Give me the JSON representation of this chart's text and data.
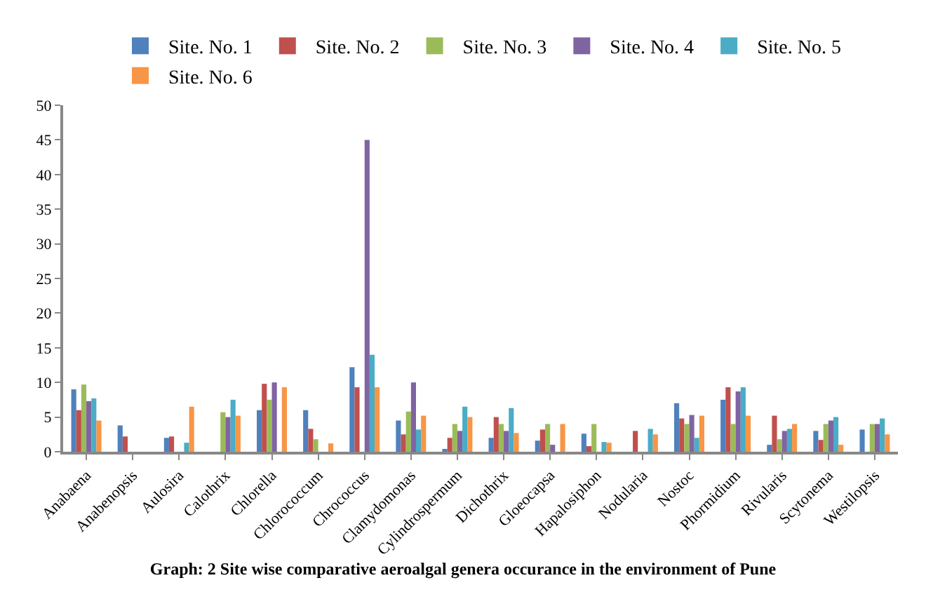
{
  "chart_data": {
    "type": "bar",
    "title": "Graph: 2 Site wise comparative aeroalgal genera occurance in the environment of Pune",
    "categories": [
      "Anabaena",
      "Anabenopsis",
      "Aulosira",
      "Calothrix",
      "Chlorella",
      "Chlorococcum",
      "Chrococcus",
      "Clamydomonas",
      "Cylindrospermum",
      "Dichothrix",
      "Gloeocapsa",
      "Hapalosiphon",
      "Nodularia",
      "Nostoc",
      "Phormidium",
      "Rivularis",
      "Scytonema",
      "Westilopsis"
    ],
    "series": [
      {
        "name": "Site. No. 1",
        "color": "#4f81bd",
        "values": [
          9,
          3.8,
          2,
          null,
          6,
          6,
          12.2,
          4.5,
          0.4,
          2,
          1.6,
          2.6,
          null,
          7,
          7.5,
          1,
          3,
          3.2
        ]
      },
      {
        "name": "Site. No. 2",
        "color": "#c0504d",
        "values": [
          6,
          2.2,
          2.2,
          null,
          9.8,
          3.3,
          9.3,
          2.5,
          2,
          5,
          3.2,
          0.8,
          3,
          4.8,
          9.3,
          5.2,
          1.7,
          null
        ]
      },
      {
        "name": "Site. No. 3",
        "color": "#9bbb59",
        "values": [
          9.7,
          null,
          null,
          5.7,
          7.5,
          1.8,
          null,
          5.8,
          4,
          4,
          4,
          4,
          null,
          4,
          4,
          1.8,
          4,
          4
        ]
      },
      {
        "name": "Site. No. 4",
        "color": "#8064a2",
        "values": [
          7.3,
          null,
          null,
          5,
          10,
          null,
          45,
          10,
          3,
          3,
          1,
          null,
          null,
          5.3,
          8.7,
          3,
          4.5,
          4
        ]
      },
      {
        "name": "Site. No. 5",
        "color": "#4bacc6",
        "values": [
          7.7,
          null,
          1.3,
          7.5,
          null,
          null,
          14,
          3.2,
          6.5,
          6.3,
          null,
          1.4,
          3.3,
          2,
          9.3,
          3.3,
          5,
          4.8
        ]
      },
      {
        "name": "Site. No. 6",
        "color": "#f79646",
        "values": [
          4.5,
          null,
          6.5,
          5.2,
          9.3,
          1.2,
          9.3,
          5.2,
          5,
          2.7,
          4,
          1.3,
          2.5,
          5.2,
          5.2,
          4,
          1,
          2.5
        ]
      }
    ],
    "ylim": [
      0,
      50
    ],
    "yticks": [
      0,
      5,
      10,
      15,
      20,
      25,
      30,
      35,
      40,
      45,
      50
    ],
    "legend": "top"
  }
}
